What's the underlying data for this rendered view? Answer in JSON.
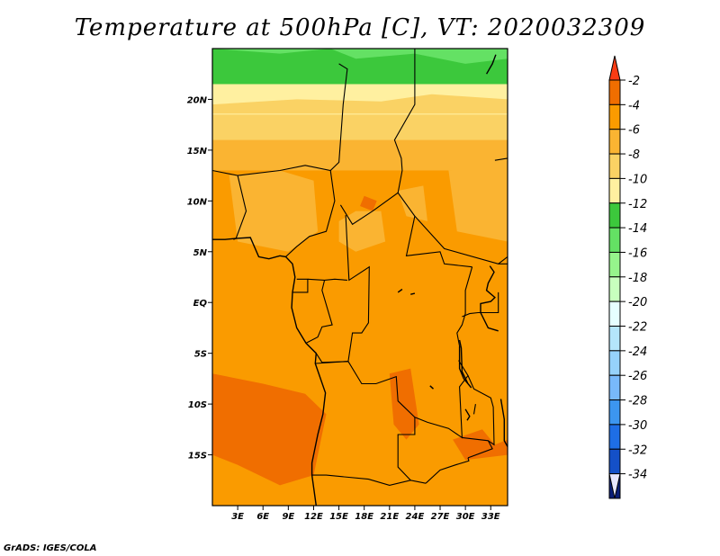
{
  "chart_data": {
    "type": "heatmap",
    "title": "Temperature at 500hPa [C], VT: 2020032309",
    "credit": "GrADS: IGES/COLA",
    "xlim": [
      0,
      35
    ],
    "ylim": [
      -20,
      25
    ],
    "x_ticks": [
      {
        "value": 3,
        "label": "3E"
      },
      {
        "value": 6,
        "label": "6E"
      },
      {
        "value": 9,
        "label": "9E"
      },
      {
        "value": 12,
        "label": "12E"
      },
      {
        "value": 15,
        "label": "15E"
      },
      {
        "value": 18,
        "label": "18E"
      },
      {
        "value": 21,
        "label": "21E"
      },
      {
        "value": 24,
        "label": "24E"
      },
      {
        "value": 27,
        "label": "27E"
      },
      {
        "value": 30,
        "label": "30E"
      },
      {
        "value": 33,
        "label": "33E"
      }
    ],
    "y_ticks": [
      {
        "value": 20,
        "label": "20N"
      },
      {
        "value": 15,
        "label": "15N"
      },
      {
        "value": 10,
        "label": "10N"
      },
      {
        "value": 5,
        "label": "5N"
      },
      {
        "value": 0,
        "label": "EQ"
      },
      {
        "value": -5,
        "label": "5S"
      },
      {
        "value": -10,
        "label": "10S"
      },
      {
        "value": -15,
        "label": "15S"
      }
    ],
    "colorbar": {
      "levels": [
        "-2",
        "-4",
        "-6",
        "-8",
        "-10",
        "-12",
        "-14",
        "-16",
        "-18",
        "-20",
        "-22",
        "-24",
        "-26",
        "-28",
        "-30",
        "-32",
        "-34"
      ],
      "colors": [
        "#fa3c14",
        "#f06e00",
        "#fa9b00",
        "#fab432",
        "#fad264",
        "#fff0a0",
        "#3cc83c",
        "#64e164",
        "#96f58c",
        "#c8ffbe",
        "#e6ffff",
        "#b4e6fa",
        "#96d2fa",
        "#78b9fa",
        "#3c96f0",
        "#1e6ee6",
        "#1450c8",
        "#0a1e78"
      ],
      "min_triangle_color": "#e6e6ff"
    },
    "field_bands": [
      {
        "lat_top": 25,
        "lat_bottom": 21.5,
        "color": "#3cc83c"
      },
      {
        "lat_top": 21.5,
        "lat_bottom": 18.5,
        "color": "#fff0a0"
      },
      {
        "lat_top": 18.5,
        "lat_bottom": 16,
        "color": "#fad264"
      },
      {
        "lat_top": 16,
        "lat_bottom": 13,
        "color": "#fab432"
      },
      {
        "lat_top": 13,
        "lat_bottom": -20,
        "color": "#fa9b00"
      }
    ],
    "field_patches": [
      {
        "lon": [
          0,
          8,
          14,
          17,
          24,
          30,
          35,
          35,
          0
        ],
        "lat": [
          25,
          24.5,
          25,
          24,
          24.5,
          23.5,
          24,
          25,
          25
        ],
        "color": "#64e164"
      },
      {
        "lon": [
          0,
          10,
          20,
          26,
          35,
          35,
          0
        ],
        "lat": [
          19.5,
          20,
          19.8,
          20.5,
          20,
          18.6,
          18.6
        ],
        "color": "#fad264"
      },
      {
        "lon": [
          2,
          8,
          12,
          12.5,
          9,
          3
        ],
        "lat": [
          12.5,
          13,
          12,
          7,
          5,
          6
        ],
        "color": "#fab432"
      },
      {
        "lon": [
          15,
          17,
          20,
          20.5,
          17,
          15
        ],
        "lat": [
          8,
          9,
          9,
          6,
          5,
          6
        ],
        "color": "#fab432"
      },
      {
        "lon": [
          22,
          25,
          25.5,
          23
        ],
        "lat": [
          11,
          11.5,
          8,
          8.5
        ],
        "color": "#fab432"
      },
      {
        "lon": [
          28,
          35,
          35,
          29
        ],
        "lat": [
          13,
          13.5,
          6,
          7
        ],
        "color": "#fab432"
      },
      {
        "lon": [
          0,
          6,
          11,
          13.5,
          12,
          8,
          3,
          0
        ],
        "lat": [
          -7,
          -8,
          -9,
          -11,
          -17,
          -18,
          -16,
          -15
        ],
        "color": "#f06e00"
      },
      {
        "lon": [
          21,
          23.5,
          24.5,
          23,
          21.5
        ],
        "lat": [
          -7,
          -6.5,
          -12,
          -13.5,
          -12
        ],
        "color": "#f06e00"
      },
      {
        "lon": [
          28.5,
          32,
          33.5,
          35,
          35,
          30
        ],
        "lat": [
          -13.5,
          -12.5,
          -14,
          -13.5,
          -15,
          -15.5
        ],
        "color": "#f06e00"
      },
      {
        "lon": [
          18,
          19.5,
          19,
          17.5
        ],
        "lat": [
          10.5,
          10,
          9,
          9.5
        ],
        "color": "#f06e00"
      },
      {
        "lon": [
          4,
          7,
          9,
          12,
          15,
          19,
          23,
          27,
          31,
          35,
          35,
          0,
          0,
          2
        ],
        "lat": [
          17.5,
          18,
          17.2,
          17.8,
          17.3,
          17.8,
          17.1,
          17.8,
          17.2,
          17.8,
          16.3,
          16.3,
          17,
          17.6
        ],
        "color": "#fad264"
      }
    ]
  }
}
